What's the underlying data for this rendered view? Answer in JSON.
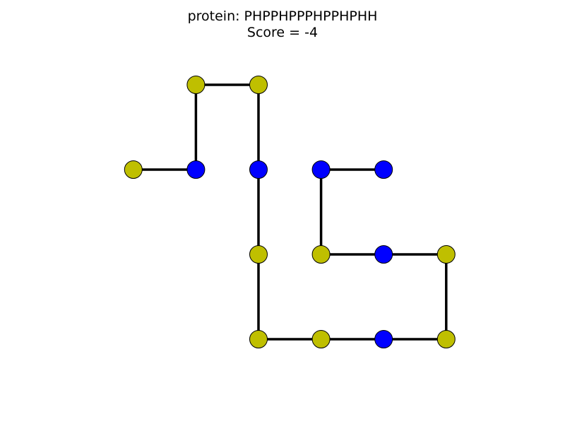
{
  "title": {
    "line1": "protein: PHPPHPPPHPPHPHH",
    "line2": "Score = -4"
  },
  "colors": {
    "H": "#0000ff",
    "P": "#bfbf00",
    "bond": "#000000",
    "outline": "#000000"
  },
  "lattice": {
    "x_range": [
      -2,
      3
    ],
    "y_range": [
      -2,
      1
    ]
  },
  "chain": [
    {
      "residue": "P",
      "x": -2,
      "y": 0
    },
    {
      "residue": "H",
      "x": -1,
      "y": 0
    },
    {
      "residue": "P",
      "x": -1,
      "y": 1
    },
    {
      "residue": "P",
      "x": 0,
      "y": 1
    },
    {
      "residue": "H",
      "x": 0,
      "y": 0
    },
    {
      "residue": "P",
      "x": 0,
      "y": -1
    },
    {
      "residue": "P",
      "x": 0,
      "y": -2
    },
    {
      "residue": "P",
      "x": 1,
      "y": -2
    },
    {
      "residue": "H",
      "x": 2,
      "y": -2
    },
    {
      "residue": "P",
      "x": 3,
      "y": -2
    },
    {
      "residue": "P",
      "x": 3,
      "y": -1
    },
    {
      "residue": "H",
      "x": 2,
      "y": -1
    },
    {
      "residue": "P",
      "x": 1,
      "y": -1
    },
    {
      "residue": "H",
      "x": 1,
      "y": 0
    },
    {
      "residue": "H",
      "x": 2,
      "y": 0
    }
  ]
}
